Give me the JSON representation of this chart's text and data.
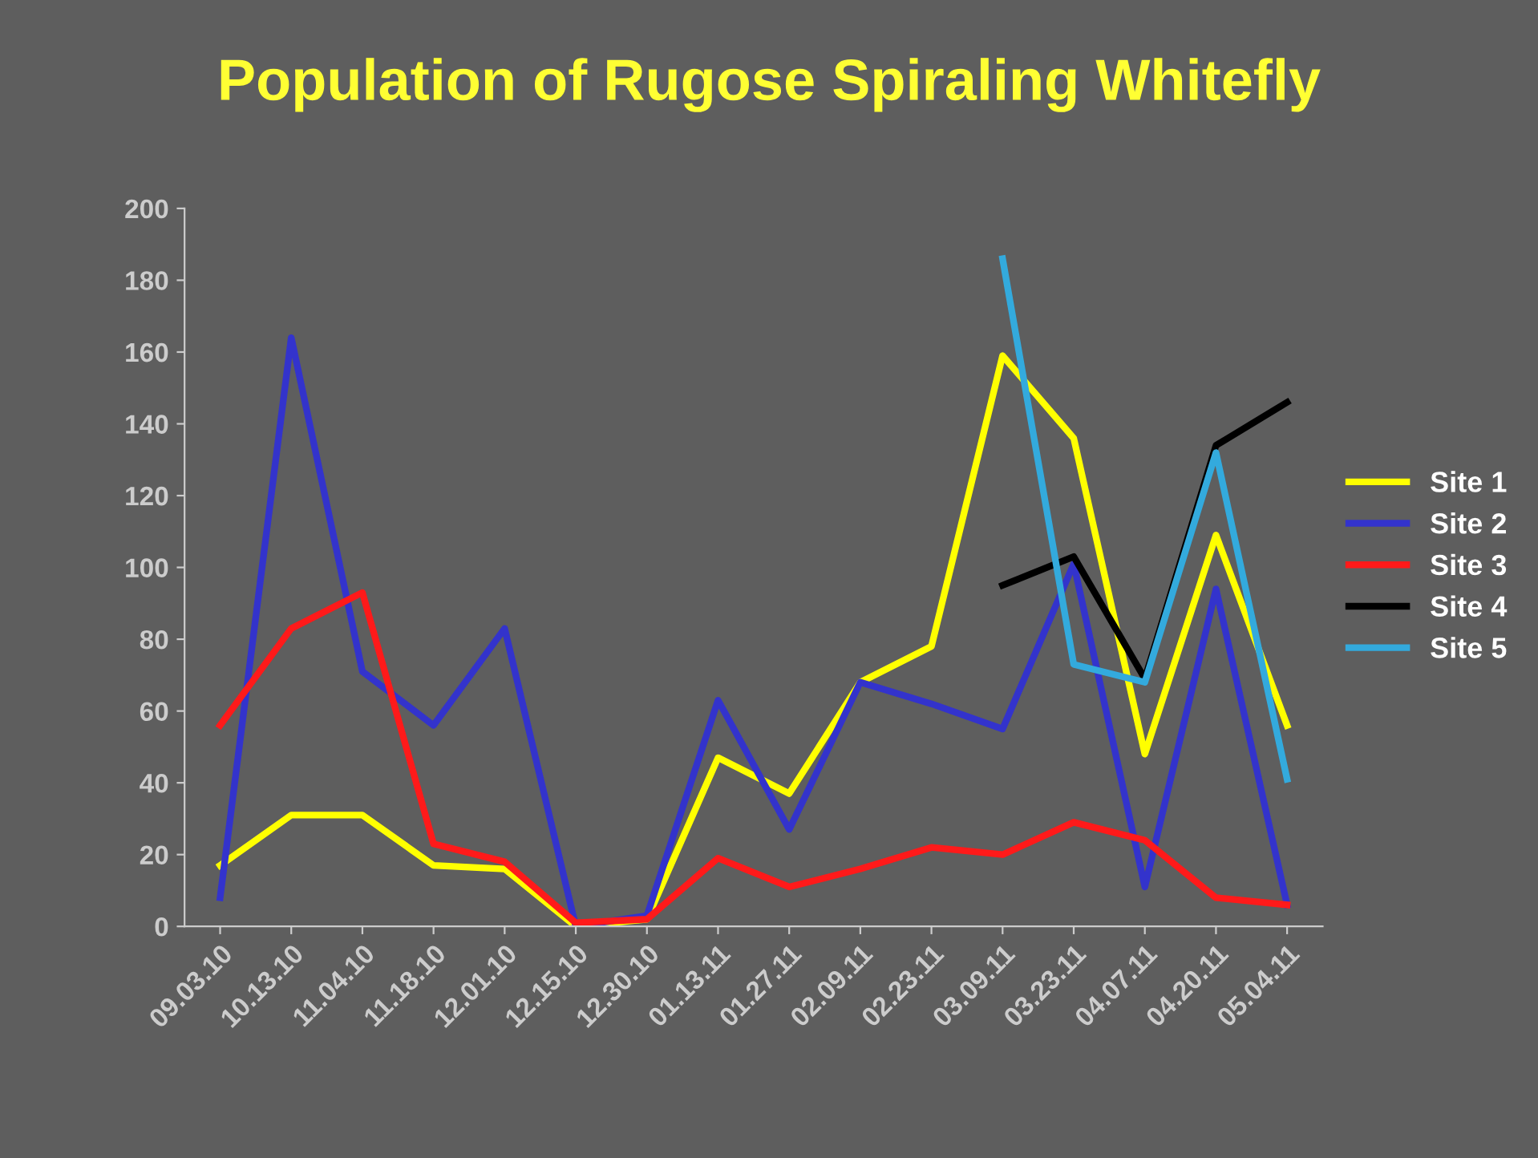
{
  "chart_data": {
    "type": "line",
    "title": "Population of Rugose Spiraling Whitefly",
    "categories": [
      "09.03.10",
      "10.13.10",
      "11.04.10",
      "11.18.10",
      "12.01.10",
      "12.15.10",
      "12.30.10",
      "01.13.11",
      "01.27.11",
      "02.09.11",
      "02.23.11",
      "03.09.11",
      "03.23.11",
      "04.07.11",
      "04.20.11",
      "05.04.11"
    ],
    "series": [
      {
        "name": "Site 1",
        "color": "#ffff00",
        "values": [
          17,
          31,
          31,
          17,
          16,
          0,
          2,
          47,
          37,
          68,
          78,
          159,
          136,
          48,
          109,
          56
        ]
      },
      {
        "name": "Site 2",
        "color": "#3333cc",
        "values": [
          8,
          164,
          71,
          56,
          83,
          0,
          3,
          63,
          27,
          68,
          62,
          55,
          101,
          11,
          94,
          6
        ]
      },
      {
        "name": "Site 3",
        "color": "#ff1a1a",
        "values": [
          56,
          83,
          93,
          23,
          18,
          1,
          2,
          19,
          11,
          16,
          22,
          20,
          29,
          24,
          8,
          6
        ]
      },
      {
        "name": "Site 4",
        "color": "#000000",
        "values": [
          null,
          null,
          null,
          null,
          null,
          null,
          null,
          null,
          null,
          null,
          null,
          95,
          103,
          69,
          134,
          146
        ]
      },
      {
        "name": "Site 5",
        "color": "#33aadd",
        "values": [
          null,
          null,
          null,
          null,
          null,
          null,
          null,
          null,
          null,
          null,
          null,
          186,
          73,
          68,
          132,
          41
        ]
      }
    ],
    "ylim": [
      0,
      200
    ],
    "yticks": [
      0,
      20,
      40,
      60,
      80,
      100,
      120,
      140,
      160,
      180,
      200
    ],
    "grid": false,
    "legend": "right",
    "marker": "none",
    "line_style": "solid"
  }
}
